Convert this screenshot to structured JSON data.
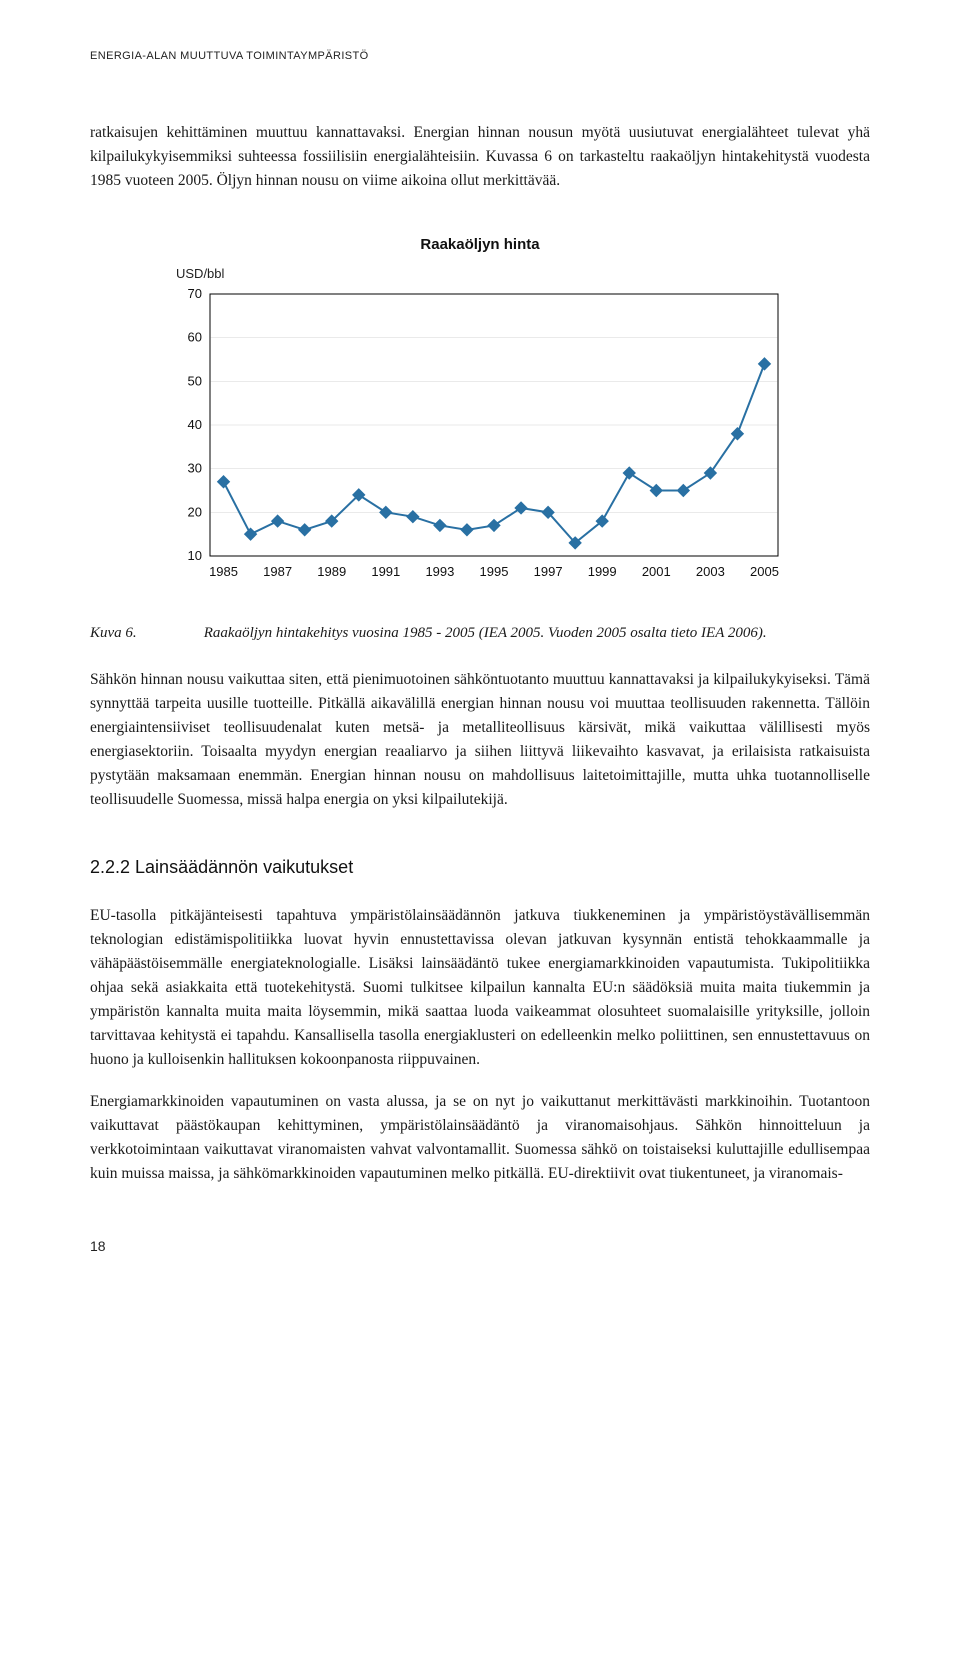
{
  "header": "ENERGIA-ALAN MUUTTUVA TOIMINTAYMPÄRISTÖ",
  "para1": "ratkaisujen kehittäminen muuttuu kannattavaksi. Energian hinnan nousun myötä uusiutuvat energialähteet tulevat yhä kilpailukykyisemmiksi suhteessa fossiilisiin energialähteisiin. Kuvassa 6 on tarkasteltu raakaöljyn hintakehitystä vuodesta 1985 vuoteen 2005. Öljyn hinnan nousu on viime aikoina ollut merkittävää.",
  "chart": {
    "type": "line",
    "title": "Raakaöljyn hinta",
    "ylabel": "USD/bbl",
    "x_ticks": [
      1985,
      1987,
      1989,
      1991,
      1993,
      1995,
      1997,
      1999,
      2001,
      2003,
      2005
    ],
    "y_ticks": [
      10,
      20,
      30,
      40,
      50,
      60,
      70
    ],
    "xlim": [
      1984.5,
      2005.5
    ],
    "ylim": [
      10,
      70
    ],
    "x_values": [
      1985,
      1986,
      1987,
      1988,
      1989,
      1990,
      1991,
      1992,
      1993,
      1994,
      1995,
      1996,
      1997,
      1998,
      1999,
      2000,
      2001,
      2002,
      2003,
      2004,
      2005
    ],
    "y_values": [
      27,
      15,
      18,
      16,
      18,
      24,
      20,
      19,
      17,
      16,
      17,
      21,
      20,
      13,
      18,
      29,
      25,
      25,
      29,
      38,
      54
    ],
    "line_color": "#2970a3",
    "marker_color": "#2970a3",
    "marker_size": 6,
    "line_width": 2,
    "background_color": "#ffffff",
    "plot_border_color": "#000000",
    "grid_color": "#666666",
    "tick_font_size": 13,
    "tick_font_family": "Arial, Helvetica, sans-serif"
  },
  "figure": {
    "label": "Kuva 6.",
    "caption": "Raakaöljyn hintakehitys vuosina 1985 - 2005 (IEA 2005. Vuoden 2005 osalta tieto IEA 2006)."
  },
  "para2": "Sähkön hinnan nousu vaikuttaa siten, että pienimuotoinen sähköntuotanto muuttuu kannattavaksi ja kilpailukykyiseksi. Tämä synnyttää tarpeita uusille tuotteille. Pitkällä aikavälillä energian hinnan nousu voi muuttaa teollisuuden rakennetta. Tällöin energiaintensiiviset teollisuudenalat kuten metsä- ja metalliteollisuus kärsivät, mikä vaikuttaa välillisesti myös energiasektoriin. Toisaalta myydyn energian reaaliarvo ja siihen liittyvä liikevaihto kasvavat, ja erilaisista ratkaisuista pystytään maksamaan enemmän. Energian hinnan nousu on mahdollisuus laitetoimittajille, mutta uhka tuotannolliselle teollisuudelle Suomessa, missä halpa energia on yksi kilpailutekijä.",
  "section": "2.2.2  Lainsäädännön vaikutukset",
  "para3": "EU-tasolla pitkäjänteisesti tapahtuva ympäristölainsäädännön jatkuva tiukkeneminen ja ympäristöystävällisemmän teknologian edistämispolitiikka luovat hyvin ennustettavissa olevan jatkuvan kysynnän entistä tehokkaammalle ja vähäpäästöisemmälle energiateknologialle. Lisäksi lainsäädäntö tukee energiamarkkinoiden vapautumista. Tukipolitiikka ohjaa sekä asiakkaita että tuotekehitystä. Suomi tulkitsee kilpailun kannalta EU:n säädöksiä muita maita tiukemmin ja ympäristön kannalta muita maita löysemmin, mikä saattaa luoda vaikeammat olosuhteet suomalaisille yrityksille, jolloin tarvittavaa kehitystä ei tapahdu. Kansallisella tasolla energiaklusteri on edelleenkin melko poliittinen, sen ennustettavuus on huono ja kulloisenkin hallituksen kokoonpanosta riippuvainen.",
  "para4": "Energiamarkkinoiden vapautuminen on vasta alussa, ja se on nyt jo vaikuttanut merkittävästi markkinoihin. Tuotantoon vaikuttavat päästökaupan kehittyminen, ympäristölainsäädäntö ja viranomaisohjaus. Sähkön hinnoitteluun ja verkkotoimintaan vaikuttavat viranomaisten vahvat valvontamallit. Suomessa sähkö on toistaiseksi kuluttajille edullisempaa kuin muissa maissa, ja sähkömarkkinoiden vapautuminen melko pitkällä. EU-direktiivit ovat tiukentuneet, ja viranomais-",
  "page_number": "18"
}
